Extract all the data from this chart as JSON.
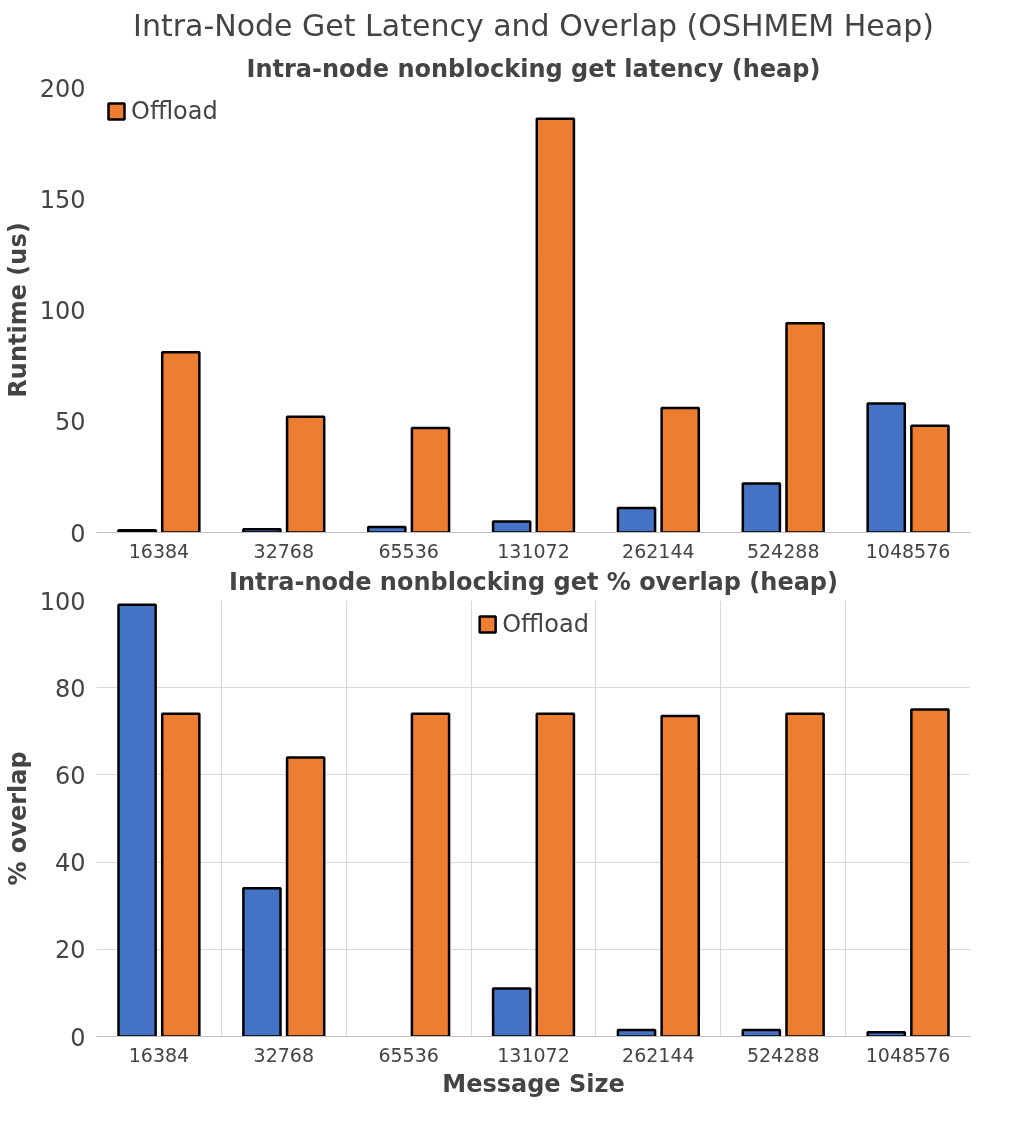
{
  "chart_data": [
    {
      "type": "bar",
      "title": "Intra-Node Get Latency and Overlap (OSHMEM Heap)",
      "subtitle": "Intra-node nonblocking get latency (heap)",
      "ylabel": "Runtime (us)",
      "categories": [
        "16384",
        "32768",
        "65536",
        "131072",
        "262144",
        "524288",
        "1048576"
      ],
      "series": [
        {
          "color": "#4472c4",
          "values": [
            1,
            1.5,
            2.5,
            5,
            11,
            22,
            58
          ]
        },
        {
          "name": "Offload",
          "color": "#ed7d31",
          "values": [
            81,
            52,
            47,
            186,
            56,
            94,
            48
          ]
        }
      ],
      "ylim": [
        0,
        200
      ],
      "yticks": [
        0,
        50,
        100,
        150,
        200
      ],
      "grid": false,
      "legend": "top left"
    },
    {
      "type": "bar",
      "title": "Intra-node nonblocking get % overlap (heap)",
      "xlabel": "Message Size",
      "ylabel": "% overlap",
      "categories": [
        "16384",
        "32768",
        "65536",
        "131072",
        "262144",
        "524288",
        "1048576"
      ],
      "series": [
        {
          "color": "#4472c4",
          "values": [
            99,
            34,
            null,
            11,
            1.5,
            1.5,
            1
          ]
        },
        {
          "name": "Offload",
          "color": "#ed7d31",
          "values": [
            74,
            64,
            74,
            74,
            73.5,
            74,
            75
          ]
        }
      ],
      "ylim": [
        0,
        100
      ],
      "yticks": [
        0,
        20,
        40,
        60,
        80,
        100
      ],
      "grid": true,
      "legend": "top"
    }
  ]
}
